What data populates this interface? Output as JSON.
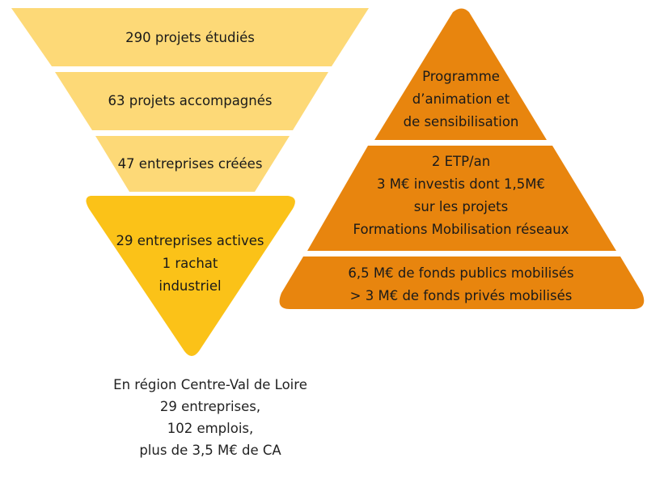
{
  "funnel": {
    "levels": [
      {
        "lines": [
          "290 projets étudiés"
        ]
      },
      {
        "lines": [
          "63 projets accompagnés"
        ]
      },
      {
        "lines": [
          "47 entreprises créées"
        ]
      },
      {
        "lines": [
          "29 entreprises actives",
          "1 rachat",
          "industriel"
        ]
      }
    ]
  },
  "pyramid": {
    "levels": [
      {
        "lines": [
          "Programme",
          "d’animation et",
          "de sensibilisation"
        ]
      },
      {
        "lines": [
          "2 ETP/an",
          "3 M€ investis dont 1,5M€",
          "sur les projets",
          "Formations Mobilisation réseaux"
        ]
      },
      {
        "lines": [
          "6,5 M€ de fonds publics mobilisés",
          "> 3 M€ de fonds privés mobilisés"
        ]
      }
    ]
  },
  "summary": {
    "lines": [
      "En région Centre-Val de Loire",
      "29 entreprises,",
      "102 emplois,",
      "plus de 3,5 M€ de CA"
    ]
  },
  "colors": {
    "funnel_light": "#FDD977",
    "funnel_bottom": "#FBC218",
    "pyramid": "#E8850E",
    "white": "#FFFFFF"
  }
}
